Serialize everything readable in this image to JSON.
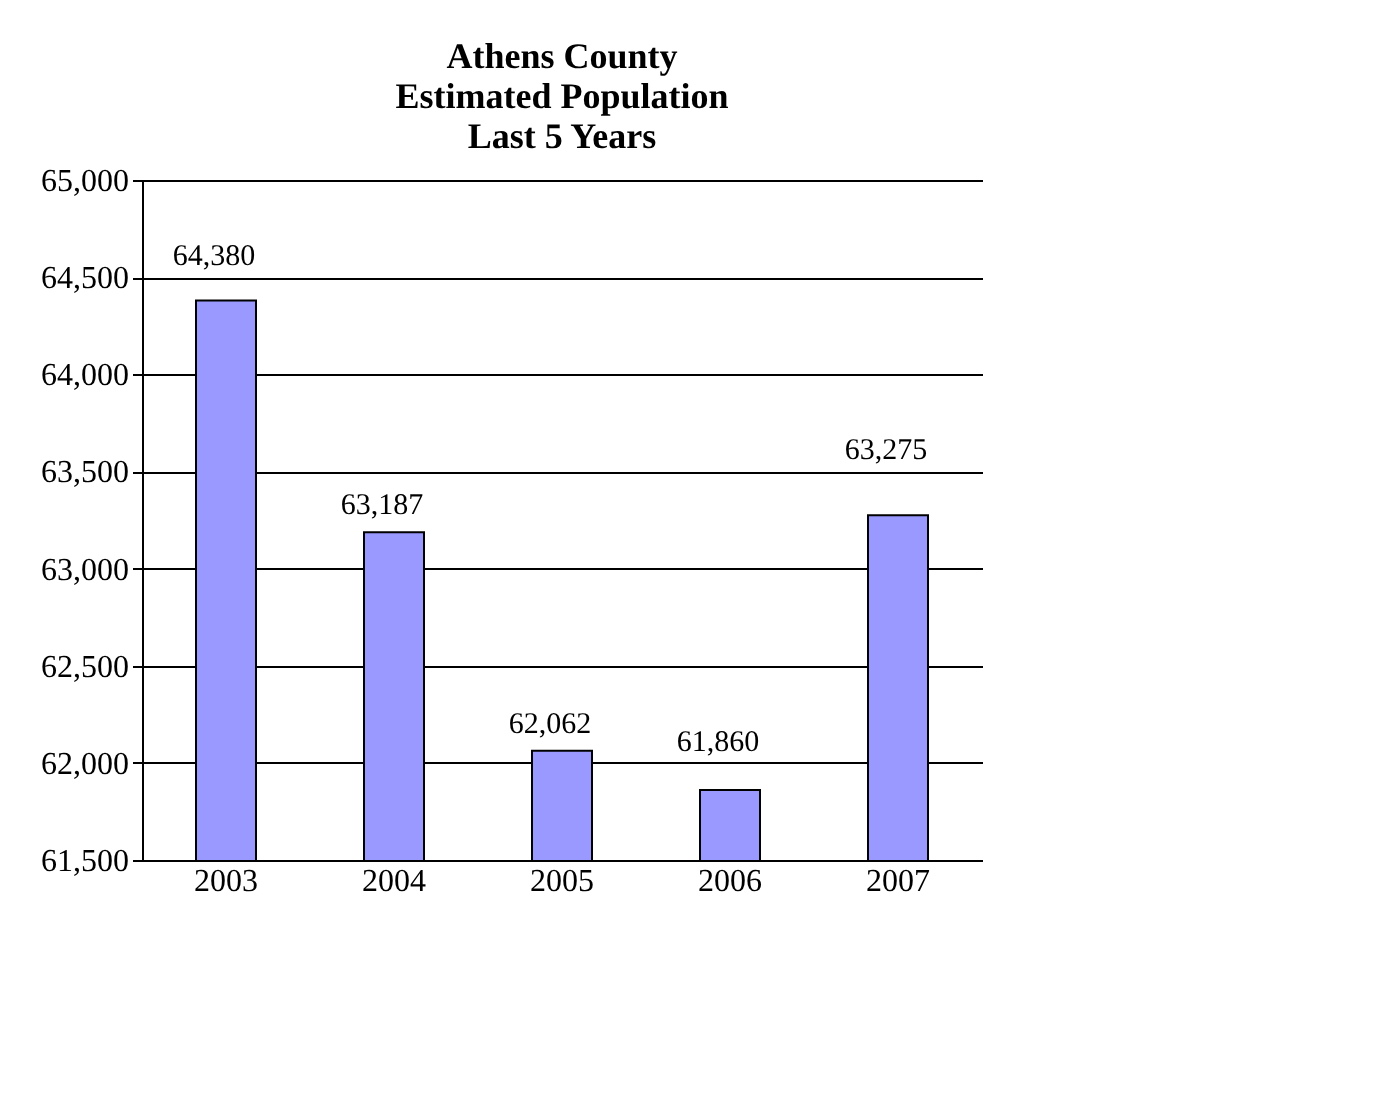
{
  "chart_data": {
    "type": "bar",
    "title": "Athens County\nEstimated Population\nLast 5 Years",
    "categories": [
      "2003",
      "2004",
      "2005",
      "2006",
      "2007"
    ],
    "values": [
      64380,
      63187,
      62062,
      61860,
      63275
    ],
    "color": "#9999ff",
    "ylim": [
      61500,
      65000
    ],
    "yticks": [
      {
        "value": 61500,
        "label": "61,500"
      },
      {
        "value": 62000,
        "label": "62,000"
      },
      {
        "value": 62500,
        "label": "62,500"
      },
      {
        "value": 63000,
        "label": "63,000"
      },
      {
        "value": 63500,
        "label": "63,500"
      },
      {
        "value": 64000,
        "label": "64,000"
      },
      {
        "value": 64500,
        "label": "64,500"
      },
      {
        "value": 65000,
        "label": "65,000"
      }
    ],
    "grid": "y",
    "data_labels": true,
    "value_labels": [
      "64,380",
      "63,187",
      "62,062",
      "61,860",
      "63,275"
    ]
  }
}
